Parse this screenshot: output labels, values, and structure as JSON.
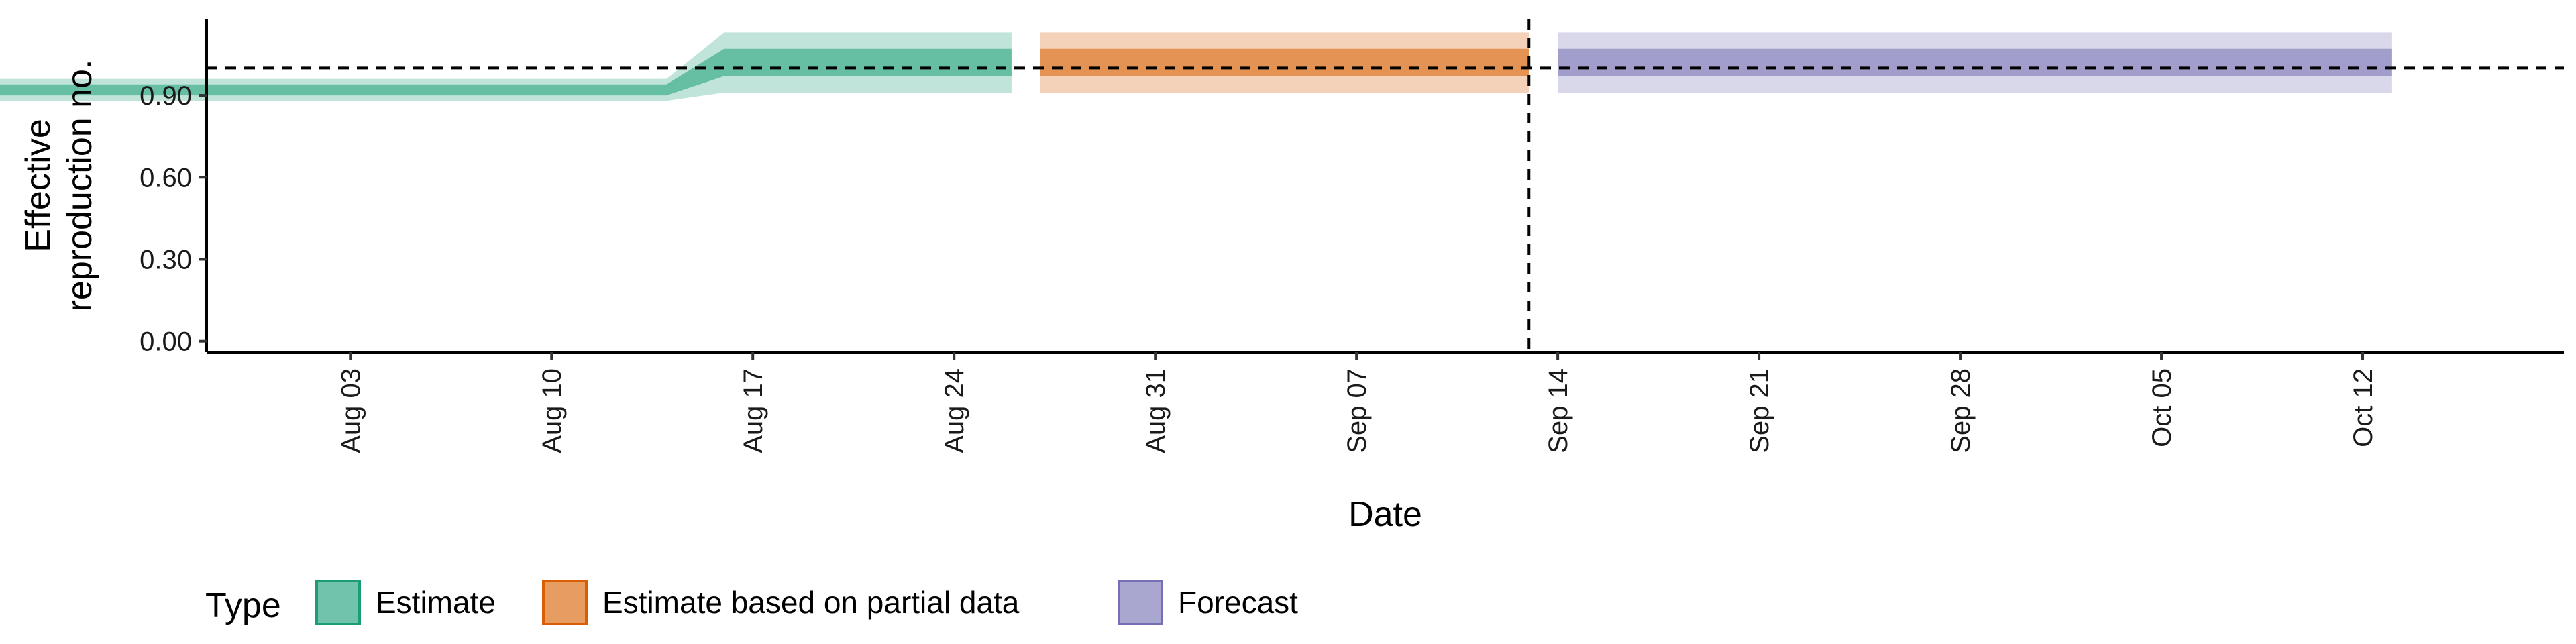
{
  "chart_data": {
    "type": "area",
    "xlabel": "Date",
    "ylabel_lines": [
      "Effective",
      "reproduction no."
    ],
    "x_ticks": [
      "2020-08-03",
      "2020-08-10",
      "2020-08-17",
      "2020-08-24",
      "2020-08-31",
      "2020-09-07",
      "2020-09-14",
      "2020-09-21",
      "2020-09-28",
      "2020-10-05",
      "2020-10-12"
    ],
    "x_tick_labels": [
      "Aug 03",
      "Aug 10",
      "Aug 17",
      "Aug 24",
      "Aug 31",
      "Sep 07",
      "Sep 14",
      "Sep 21",
      "Sep 28",
      "Oct 05",
      "Oct 12"
    ],
    "xlim": [
      "2020-07-29",
      "2020-10-19"
    ],
    "y_ticks": [
      0,
      0.3,
      0.6,
      0.9
    ],
    "y_tick_labels": [
      "0.00",
      "0.30",
      "0.60",
      "0.90"
    ],
    "ylim": [
      -0.04,
      1.18
    ],
    "reference_hline": 1.0,
    "reference_vline": "2020-09-13",
    "legend": {
      "title": "Type",
      "position": "bottom",
      "items": [
        "Estimate",
        "Estimate based on partial data",
        "Forecast"
      ]
    },
    "series": [
      {
        "name": "Estimate",
        "color": "#1B9E77",
        "points": [
          {
            "x": "2020-07-02",
            "inner_lower": 0.9,
            "inner_upper": 0.94,
            "outer_lower": 0.88,
            "outer_upper": 0.96
          },
          {
            "x": "2020-08-14",
            "inner_lower": 0.9,
            "inner_upper": 0.94,
            "outer_lower": 0.88,
            "outer_upper": 0.96
          },
          {
            "x": "2020-08-16",
            "inner_lower": 0.97,
            "inner_upper": 1.07,
            "outer_lower": 0.91,
            "outer_upper": 1.13
          },
          {
            "x": "2020-08-26",
            "inner_lower": 0.97,
            "inner_upper": 1.07,
            "outer_lower": 0.91,
            "outer_upper": 1.13
          }
        ]
      },
      {
        "name": "Estimate based on partial data",
        "color": "#D95F02",
        "points": [
          {
            "x": "2020-08-27",
            "inner_lower": 0.97,
            "inner_upper": 1.07,
            "outer_lower": 0.91,
            "outer_upper": 1.13
          },
          {
            "x": "2020-09-13",
            "inner_lower": 0.97,
            "inner_upper": 1.07,
            "outer_lower": 0.91,
            "outer_upper": 1.13
          }
        ]
      },
      {
        "name": "Forecast",
        "color": "#7570B3",
        "points": [
          {
            "x": "2020-09-14",
            "inner_lower": 0.97,
            "inner_upper": 1.07,
            "outer_lower": 0.91,
            "outer_upper": 1.13
          },
          {
            "x": "2020-10-13",
            "inner_lower": 0.97,
            "inner_upper": 1.07,
            "outer_lower": 0.91,
            "outer_upper": 1.13
          }
        ]
      }
    ]
  }
}
